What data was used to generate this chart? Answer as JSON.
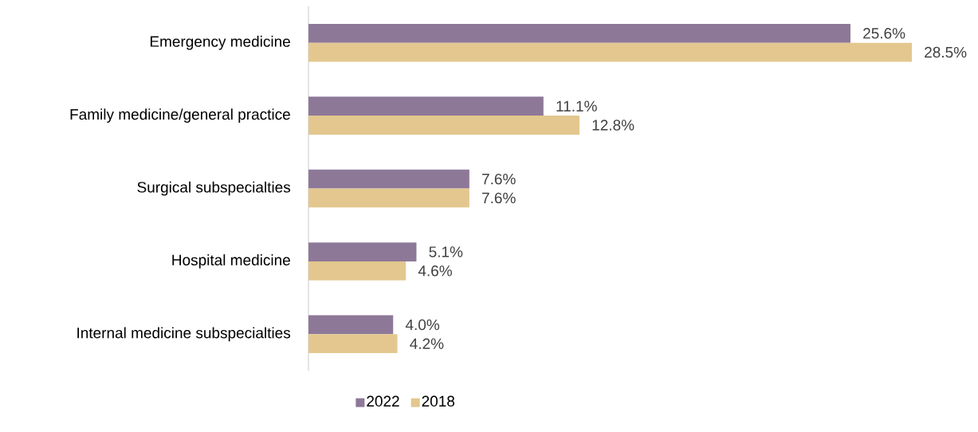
{
  "chart_data": {
    "type": "bar",
    "orientation": "horizontal",
    "legend": "bottom",
    "categories": [
      "Emergency medicine",
      "Family medicine/general practice",
      "Surgical subspecialties",
      "Hospital medicine",
      "Internal medicine subspecialties"
    ],
    "series": [
      {
        "name": "2022",
        "color": "#8e7898",
        "values": [
          25.6,
          11.1,
          7.6,
          5.1,
          4.0
        ],
        "value_labels": [
          "25.6%",
          "11.1%",
          "7.6%",
          "5.1%",
          "4.0%"
        ]
      },
      {
        "name": "2018",
        "color": "#e3c78f",
        "values": [
          28.5,
          12.8,
          7.6,
          4.6,
          4.2
        ],
        "value_labels": [
          "28.5%",
          "12.8%",
          "7.6%",
          "4.6%",
          "4.2%"
        ]
      }
    ]
  }
}
